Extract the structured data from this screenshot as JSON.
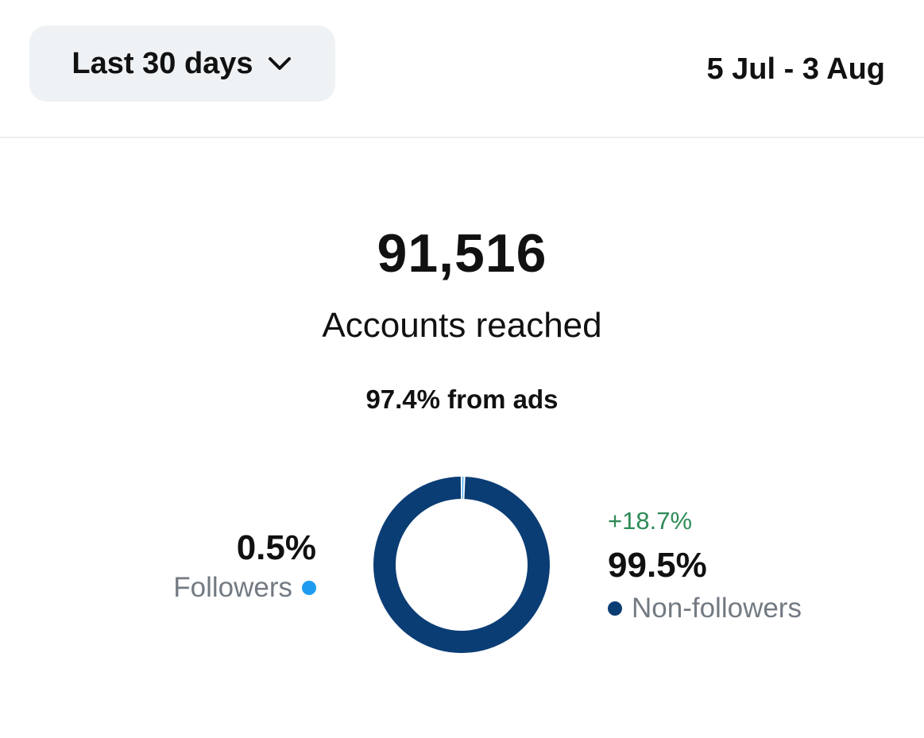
{
  "header": {
    "range_label": "Last 30 days",
    "date_range": "5 Jul - 3 Aug"
  },
  "summary": {
    "value": "91,516",
    "label": "Accounts reached",
    "ads_share": "97.4% from ads"
  },
  "breakdown": {
    "followers": {
      "percent": "0.5%",
      "label": "Followers",
      "color": "#1d9bf0"
    },
    "non_followers": {
      "percent": "99.5%",
      "label": "Non-followers",
      "change": "+18.7%",
      "color": "#0b3d75"
    }
  },
  "chart_data": {
    "type": "pie",
    "style": "donut",
    "categories": [
      "Followers",
      "Non-followers"
    ],
    "values": [
      0.5,
      99.5
    ],
    "colors": [
      "#1d9bf0",
      "#0b3d75"
    ]
  }
}
